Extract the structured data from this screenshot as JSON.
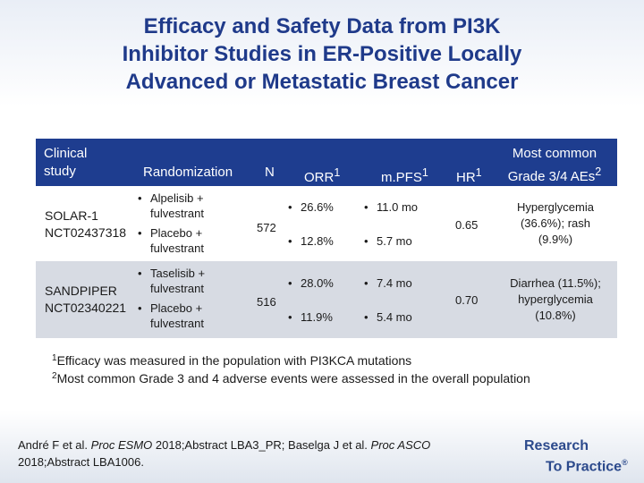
{
  "title": {
    "line1": "Efficacy and Safety Data from PI3K",
    "line2": "Inhibitor Studies in ER-Positive Locally",
    "line3": "Advanced or Metastatic Breast Cancer"
  },
  "table": {
    "headers": {
      "study_line1": "Clinical",
      "study_line2": "study",
      "randomization": "Randomization",
      "n": "N",
      "orr": "ORR",
      "orr_sup": "1",
      "mpfs": "m.PFS",
      "mpfs_sup": "1",
      "hr": "HR",
      "hr_sup": "1",
      "ae_line1": "Most common",
      "ae_line2": "Grade 3/4 AEs",
      "ae_sup": "2"
    },
    "rows": [
      {
        "study_line1": "SOLAR-1",
        "study_line2": "NCT02437318",
        "arm1_line1": "Alpelisib +",
        "arm1_line2": "fulvestrant",
        "arm2_line1": "Placebo +",
        "arm2_line2": "fulvestrant",
        "n": "572",
        "orr1": "26.6%",
        "orr2": "12.8%",
        "pfs1": "11.0 mo",
        "pfs2": "5.7 mo",
        "hr": "0.65",
        "ae_line1": "Hyperglycemia",
        "ae_line2": "(36.6%); rash",
        "ae_line3": "(9.9%)"
      },
      {
        "study_line1": "SANDPIPER",
        "study_line2": "NCT02340221",
        "arm1_line1": "Taselisib +",
        "arm1_line2": "fulvestrant",
        "arm2_line1": "Placebo +",
        "arm2_line2": "fulvestrant",
        "n": "516",
        "orr1": "28.0%",
        "orr2": "11.9%",
        "pfs1": "7.4 mo",
        "pfs2": "5.4 mo",
        "hr": "0.70",
        "ae_line1": "Diarrhea (11.5%);",
        "ae_line2": "hyperglycemia",
        "ae_line3": "(10.8%)"
      }
    ],
    "bullet": "•"
  },
  "footnotes": {
    "f1_mark": "1",
    "f1_text": "Efficacy was measured in the population with PI3KCA mutations",
    "f2_mark": "2",
    "f2_text": "Most common Grade 3 and 4 adverse events were assessed in the overall population"
  },
  "citation": {
    "part1": "André F et al. ",
    "journal1": "Proc ESMO",
    "part2": " 2018;Abstract LBA3_PR; Baselga J et al. ",
    "journal2": "Proc ASCO",
    "part3": "2018;Abstract LBA1006."
  },
  "logo": {
    "line1": "Research",
    "line2": "To Practice",
    "reg": "®"
  },
  "colors": {
    "title": "#1f3a8a",
    "header_bg": "#1e3d8f",
    "band_gray": "#d7dbe3",
    "logo": "#2c4a8c"
  }
}
